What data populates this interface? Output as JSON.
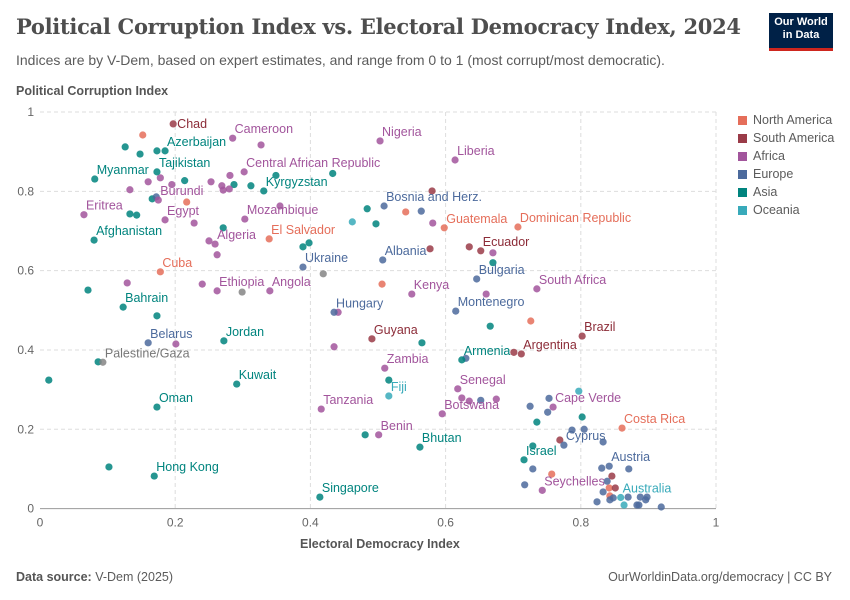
{
  "header": {
    "title": "Political Corruption Index vs. Electoral Democracy Index, 2024",
    "subtitle": "Indices are by V-Dem, based on expert estimates, and range from 0 to 1 (most corrupt/most democratic).",
    "logo": "Our World in Data"
  },
  "footer": {
    "source_label": "Data source:",
    "source": "V-Dem (2025)",
    "link": "OurWorldinData.org/democracy | CC BY"
  },
  "chart_data": {
    "type": "scatter",
    "title": "Political Corruption Index vs. Electoral Democracy Index, 2024",
    "xlabel": "Electoral Democracy Index",
    "ylabel": "Political Corruption Index",
    "xlim": [
      0,
      1
    ],
    "ylim": [
      0,
      1
    ],
    "xticks": [
      "0",
      "0.2",
      "0.4",
      "0.6",
      "0.8",
      "1"
    ],
    "yticks": [
      "0",
      "0.2",
      "0.4",
      "0.6",
      "0.8",
      "1"
    ],
    "grid": true,
    "legend_position": "right",
    "legend": [
      {
        "name": "North America",
        "color": "#e56e5a"
      },
      {
        "name": "South America",
        "color": "#9a3b48"
      },
      {
        "name": "Africa",
        "color": "#a2559c"
      },
      {
        "name": "Europe",
        "color": "#4c6a9c"
      },
      {
        "name": "Asia",
        "color": "#00847e"
      },
      {
        "name": "Oceania",
        "color": "#38aaba"
      }
    ],
    "other_color": "#858585",
    "points": [
      {
        "name": "Chad",
        "x": 0.197,
        "y": 0.97,
        "region": "South America"
      },
      {
        "name": "Cameroon",
        "x": 0.285,
        "y": 0.934,
        "region": "Africa"
      },
      {
        "name": "Nigeria",
        "x": 0.503,
        "y": 0.927,
        "region": "Africa"
      },
      {
        "name": "Liberia",
        "x": 0.614,
        "y": 0.879,
        "region": "Africa"
      },
      {
        "name": "Azerbaijan",
        "x": 0.185,
        "y": 0.902,
        "region": "Asia"
      },
      {
        "name": "Tajikistan",
        "x": 0.173,
        "y": 0.849,
        "region": "Asia"
      },
      {
        "name": "Myanmar",
        "x": 0.081,
        "y": 0.831,
        "region": "Asia"
      },
      {
        "name": "Central African Republic",
        "x": 0.302,
        "y": 0.849,
        "region": "Africa"
      },
      {
        "name": "Kyrgyzstan",
        "x": 0.331,
        "y": 0.801,
        "region": "Asia"
      },
      {
        "name": "Burundi",
        "x": 0.175,
        "y": 0.778,
        "region": "Africa"
      },
      {
        "name": "Eritrea",
        "x": 0.065,
        "y": 0.741,
        "region": "Africa"
      },
      {
        "name": "Egypt",
        "x": 0.185,
        "y": 0.728,
        "region": "Africa"
      },
      {
        "name": "Afghanistan",
        "x": 0.08,
        "y": 0.677,
        "region": "Asia"
      },
      {
        "name": "Mozambique",
        "x": 0.303,
        "y": 0.73,
        "region": "Africa"
      },
      {
        "name": "Algeria",
        "x": 0.259,
        "y": 0.667,
        "region": "Africa"
      },
      {
        "name": "El Salvador",
        "x": 0.339,
        "y": 0.68,
        "region": "North America"
      },
      {
        "name": "Cuba",
        "x": 0.178,
        "y": 0.597,
        "region": "North America"
      },
      {
        "name": "Ukraine",
        "x": 0.389,
        "y": 0.609,
        "region": "Europe"
      },
      {
        "name": "Ethiopia",
        "x": 0.262,
        "y": 0.549,
        "region": "Africa"
      },
      {
        "name": "Angola",
        "x": 0.34,
        "y": 0.549,
        "region": "Africa"
      },
      {
        "name": "Bahrain",
        "x": 0.123,
        "y": 0.508,
        "region": "Asia"
      },
      {
        "name": "Hungary",
        "x": 0.435,
        "y": 0.495,
        "region": "Europe"
      },
      {
        "name": "Belarus",
        "x": 0.16,
        "y": 0.418,
        "region": "Europe"
      },
      {
        "name": "Jordan",
        "x": 0.272,
        "y": 0.423,
        "region": "Asia"
      },
      {
        "name": "Palestine/Gaza",
        "x": 0.093,
        "y": 0.369,
        "region": "Other"
      },
      {
        "name": "Kuwait",
        "x": 0.291,
        "y": 0.314,
        "region": "Asia"
      },
      {
        "name": "Oman",
        "x": 0.173,
        "y": 0.256,
        "region": "Asia"
      },
      {
        "name": "Hong Kong",
        "x": 0.169,
        "y": 0.082,
        "region": "Asia"
      },
      {
        "name": "Singapore",
        "x": 0.414,
        "y": 0.029,
        "region": "Asia"
      },
      {
        "name": "Tanzania",
        "x": 0.416,
        "y": 0.251,
        "region": "Africa"
      },
      {
        "name": "Benin",
        "x": 0.501,
        "y": 0.186,
        "region": "Africa"
      },
      {
        "name": "Bhutan",
        "x": 0.562,
        "y": 0.155,
        "region": "Asia"
      },
      {
        "name": "Zambia",
        "x": 0.51,
        "y": 0.354,
        "region": "Africa"
      },
      {
        "name": "Fiji",
        "x": 0.516,
        "y": 0.284,
        "region": "Oceania"
      },
      {
        "name": "Guyana",
        "x": 0.491,
        "y": 0.428,
        "region": "South America"
      },
      {
        "name": "Bosnia and Herz.",
        "x": 0.509,
        "y": 0.763,
        "region": "Europe"
      },
      {
        "name": "Guatemala",
        "x": 0.598,
        "y": 0.708,
        "region": "North America"
      },
      {
        "name": "Dominican Republic",
        "x": 0.707,
        "y": 0.71,
        "region": "North America"
      },
      {
        "name": "Ecuador",
        "x": 0.652,
        "y": 0.65,
        "region": "South America"
      },
      {
        "name": "Albania",
        "x": 0.507,
        "y": 0.627,
        "region": "Europe"
      },
      {
        "name": "Bulgaria",
        "x": 0.646,
        "y": 0.579,
        "region": "Europe"
      },
      {
        "name": "South Africa",
        "x": 0.735,
        "y": 0.554,
        "region": "Africa"
      },
      {
        "name": "Kenya",
        "x": 0.55,
        "y": 0.541,
        "region": "Africa"
      },
      {
        "name": "Montenegro",
        "x": 0.615,
        "y": 0.498,
        "region": "Europe"
      },
      {
        "name": "Armenia",
        "x": 0.624,
        "y": 0.375,
        "region": "Asia"
      },
      {
        "name": "Argentina",
        "x": 0.712,
        "y": 0.39,
        "region": "South America"
      },
      {
        "name": "Brazil",
        "x": 0.802,
        "y": 0.435,
        "region": "South America"
      },
      {
        "name": "Senegal",
        "x": 0.618,
        "y": 0.302,
        "region": "Africa"
      },
      {
        "name": "Botswana",
        "x": 0.595,
        "y": 0.239,
        "region": "Africa"
      },
      {
        "name": "Cape Verde",
        "x": 0.759,
        "y": 0.256,
        "region": "Africa"
      },
      {
        "name": "Costa Rica",
        "x": 0.861,
        "y": 0.203,
        "region": "North America"
      },
      {
        "name": "Cyprus",
        "x": 0.775,
        "y": 0.16,
        "region": "Europe"
      },
      {
        "name": "Israel",
        "x": 0.716,
        "y": 0.123,
        "region": "Asia"
      },
      {
        "name": "Austria",
        "x": 0.842,
        "y": 0.107,
        "region": "Europe"
      },
      {
        "name": "Seychelles",
        "x": 0.743,
        "y": 0.046,
        "region": "Africa"
      },
      {
        "name": "Australia",
        "x": 0.859,
        "y": 0.028,
        "region": "Oceania"
      },
      {
        "name": "",
        "x": 0.152,
        "y": 0.942,
        "region": "North America"
      },
      {
        "name": "",
        "x": 0.126,
        "y": 0.912,
        "region": "Asia"
      },
      {
        "name": "",
        "x": 0.148,
        "y": 0.894,
        "region": "Asia"
      },
      {
        "name": "",
        "x": 0.173,
        "y": 0.902,
        "region": "Asia"
      },
      {
        "name": "",
        "x": 0.327,
        "y": 0.917,
        "region": "Africa"
      },
      {
        "name": "",
        "x": 0.16,
        "y": 0.824,
        "region": "Africa"
      },
      {
        "name": "",
        "x": 0.178,
        "y": 0.834,
        "region": "Africa"
      },
      {
        "name": "",
        "x": 0.195,
        "y": 0.817,
        "region": "Africa"
      },
      {
        "name": "",
        "x": 0.214,
        "y": 0.827,
        "region": "Asia"
      },
      {
        "name": "",
        "x": 0.253,
        "y": 0.824,
        "region": "Africa"
      },
      {
        "name": "",
        "x": 0.269,
        "y": 0.814,
        "region": "Africa"
      },
      {
        "name": "",
        "x": 0.281,
        "y": 0.84,
        "region": "Africa"
      },
      {
        "name": "",
        "x": 0.287,
        "y": 0.817,
        "region": "Asia"
      },
      {
        "name": "",
        "x": 0.312,
        "y": 0.814,
        "region": "Asia"
      },
      {
        "name": "",
        "x": 0.349,
        "y": 0.84,
        "region": "Asia"
      },
      {
        "name": "",
        "x": 0.433,
        "y": 0.845,
        "region": "Asia"
      },
      {
        "name": "",
        "x": 0.133,
        "y": 0.804,
        "region": "Africa"
      },
      {
        "name": "",
        "x": 0.271,
        "y": 0.803,
        "region": "Africa"
      },
      {
        "name": "",
        "x": 0.28,
        "y": 0.806,
        "region": "Africa"
      },
      {
        "name": "",
        "x": 0.166,
        "y": 0.781,
        "region": "Asia"
      },
      {
        "name": "",
        "x": 0.172,
        "y": 0.786,
        "region": "Europe"
      },
      {
        "name": "",
        "x": 0.217,
        "y": 0.773,
        "region": "North America"
      },
      {
        "name": "",
        "x": 0.133,
        "y": 0.743,
        "region": "Asia"
      },
      {
        "name": "",
        "x": 0.143,
        "y": 0.74,
        "region": "Asia"
      },
      {
        "name": "",
        "x": 0.228,
        "y": 0.72,
        "region": "Africa"
      },
      {
        "name": "",
        "x": 0.271,
        "y": 0.708,
        "region": "Asia"
      },
      {
        "name": "",
        "x": 0.25,
        "y": 0.675,
        "region": "Africa"
      },
      {
        "name": "",
        "x": 0.262,
        "y": 0.64,
        "region": "Africa"
      },
      {
        "name": "",
        "x": 0.355,
        "y": 0.763,
        "region": "Africa"
      },
      {
        "name": "",
        "x": 0.389,
        "y": 0.66,
        "region": "Asia"
      },
      {
        "name": "",
        "x": 0.398,
        "y": 0.67,
        "region": "Asia"
      },
      {
        "name": "",
        "x": 0.419,
        "y": 0.592,
        "region": "Other"
      },
      {
        "name": "",
        "x": 0.484,
        "y": 0.756,
        "region": "Asia"
      },
      {
        "name": "",
        "x": 0.462,
        "y": 0.723,
        "region": "Oceania"
      },
      {
        "name": "",
        "x": 0.497,
        "y": 0.718,
        "region": "Asia"
      },
      {
        "name": "",
        "x": 0.071,
        "y": 0.551,
        "region": "Asia"
      },
      {
        "name": "",
        "x": 0.129,
        "y": 0.569,
        "region": "Africa"
      },
      {
        "name": "",
        "x": 0.24,
        "y": 0.566,
        "region": "Africa"
      },
      {
        "name": "",
        "x": 0.299,
        "y": 0.546,
        "region": "Other"
      },
      {
        "name": "",
        "x": 0.173,
        "y": 0.486,
        "region": "Asia"
      },
      {
        "name": "",
        "x": 0.201,
        "y": 0.415,
        "region": "Africa"
      },
      {
        "name": "",
        "x": 0.086,
        "y": 0.37,
        "region": "Asia"
      },
      {
        "name": "",
        "x": 0.013,
        "y": 0.324,
        "region": "Asia"
      },
      {
        "name": "",
        "x": 0.102,
        "y": 0.105,
        "region": "Asia"
      },
      {
        "name": "",
        "x": 0.441,
        "y": 0.495,
        "region": "Africa"
      },
      {
        "name": "",
        "x": 0.565,
        "y": 0.418,
        "region": "Asia"
      },
      {
        "name": "",
        "x": 0.435,
        "y": 0.408,
        "region": "Africa"
      },
      {
        "name": "",
        "x": 0.516,
        "y": 0.324,
        "region": "Asia"
      },
      {
        "name": "",
        "x": 0.481,
        "y": 0.186,
        "region": "Asia"
      },
      {
        "name": "",
        "x": 0.58,
        "y": 0.801,
        "region": "South America"
      },
      {
        "name": "",
        "x": 0.541,
        "y": 0.748,
        "region": "North America"
      },
      {
        "name": "",
        "x": 0.564,
        "y": 0.75,
        "region": "Europe"
      },
      {
        "name": "",
        "x": 0.581,
        "y": 0.72,
        "region": "Africa"
      },
      {
        "name": "",
        "x": 0.577,
        "y": 0.655,
        "region": "South America"
      },
      {
        "name": "",
        "x": 0.635,
        "y": 0.66,
        "region": "South America"
      },
      {
        "name": "",
        "x": 0.67,
        "y": 0.645,
        "region": "Africa"
      },
      {
        "name": "",
        "x": 0.67,
        "y": 0.62,
        "region": "Asia"
      },
      {
        "name": "",
        "x": 0.506,
        "y": 0.566,
        "region": "North America"
      },
      {
        "name": "",
        "x": 0.66,
        "y": 0.541,
        "region": "Africa"
      },
      {
        "name": "",
        "x": 0.666,
        "y": 0.46,
        "region": "Asia"
      },
      {
        "name": "",
        "x": 0.63,
        "y": 0.379,
        "region": "Europe"
      },
      {
        "name": "",
        "x": 0.624,
        "y": 0.279,
        "region": "Africa"
      },
      {
        "name": "",
        "x": 0.635,
        "y": 0.271,
        "region": "Africa"
      },
      {
        "name": "",
        "x": 0.652,
        "y": 0.273,
        "region": "Europe"
      },
      {
        "name": "",
        "x": 0.675,
        "y": 0.276,
        "region": "Africa"
      },
      {
        "name": "",
        "x": 0.726,
        "y": 0.473,
        "region": "North America"
      },
      {
        "name": "",
        "x": 0.701,
        "y": 0.394,
        "region": "South America"
      },
      {
        "name": "",
        "x": 0.797,
        "y": 0.296,
        "region": "Oceania"
      },
      {
        "name": "",
        "x": 0.753,
        "y": 0.278,
        "region": "Europe"
      },
      {
        "name": "",
        "x": 0.725,
        "y": 0.258,
        "region": "Europe"
      },
      {
        "name": "",
        "x": 0.751,
        "y": 0.243,
        "region": "Europe"
      },
      {
        "name": "",
        "x": 0.735,
        "y": 0.218,
        "region": "Asia"
      },
      {
        "name": "",
        "x": 0.802,
        "y": 0.231,
        "region": "Asia"
      },
      {
        "name": "",
        "x": 0.805,
        "y": 0.2,
        "region": "Europe"
      },
      {
        "name": "",
        "x": 0.787,
        "y": 0.198,
        "region": "Europe"
      },
      {
        "name": "",
        "x": 0.769,
        "y": 0.173,
        "region": "South America"
      },
      {
        "name": "",
        "x": 0.833,
        "y": 0.168,
        "region": "Europe"
      },
      {
        "name": "",
        "x": 0.729,
        "y": 0.158,
        "region": "Asia"
      },
      {
        "name": "",
        "x": 0.729,
        "y": 0.1,
        "region": "Europe"
      },
      {
        "name": "",
        "x": 0.757,
        "y": 0.087,
        "region": "North America"
      },
      {
        "name": "",
        "x": 0.831,
        "y": 0.102,
        "region": "Europe"
      },
      {
        "name": "",
        "x": 0.871,
        "y": 0.1,
        "region": "Europe"
      },
      {
        "name": "",
        "x": 0.846,
        "y": 0.082,
        "region": "South America"
      },
      {
        "name": "",
        "x": 0.839,
        "y": 0.069,
        "region": "Europe"
      },
      {
        "name": "",
        "x": 0.842,
        "y": 0.052,
        "region": "North America"
      },
      {
        "name": "",
        "x": 0.851,
        "y": 0.052,
        "region": "South America"
      },
      {
        "name": "",
        "x": 0.833,
        "y": 0.042,
        "region": "Europe"
      },
      {
        "name": "",
        "x": 0.717,
        "y": 0.06,
        "region": "Europe"
      },
      {
        "name": "",
        "x": 0.843,
        "y": 0.032,
        "region": "North America"
      },
      {
        "name": "",
        "x": 0.848,
        "y": 0.027,
        "region": "Europe"
      },
      {
        "name": "",
        "x": 0.843,
        "y": 0.022,
        "region": "Europe"
      },
      {
        "name": "",
        "x": 0.824,
        "y": 0.017,
        "region": "Europe"
      },
      {
        "name": "",
        "x": 0.87,
        "y": 0.029,
        "region": "Europe"
      },
      {
        "name": "",
        "x": 0.888,
        "y": 0.029,
        "region": "Europe"
      },
      {
        "name": "",
        "x": 0.898,
        "y": 0.029,
        "region": "Europe"
      },
      {
        "name": "",
        "x": 0.896,
        "y": 0.022,
        "region": "Europe"
      },
      {
        "name": "",
        "x": 0.864,
        "y": 0.009,
        "region": "Oceania"
      },
      {
        "name": "",
        "x": 0.883,
        "y": 0.009,
        "region": "Europe"
      },
      {
        "name": "",
        "x": 0.886,
        "y": 0.009,
        "region": "Europe"
      },
      {
        "name": "",
        "x": 0.919,
        "y": 0.004,
        "region": "Europe"
      }
    ]
  }
}
